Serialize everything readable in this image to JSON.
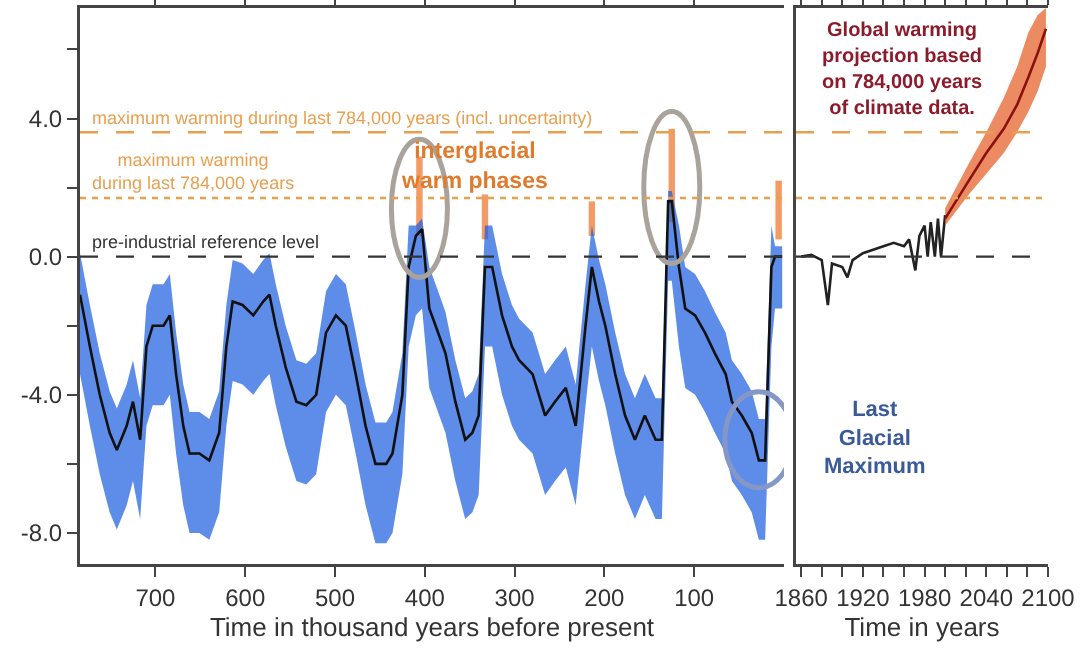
{
  "chart_data": [
    {
      "type": "line",
      "xlabel": "Time in thousand years before present",
      "xlim": [
        784,
        0
      ],
      "xticks": [
        100,
        200,
        300,
        400,
        500,
        600,
        700
      ],
      "ylim": [
        -8.9,
        7.2
      ],
      "yticks": [
        {
          "value": -8,
          "label": "-8.0"
        },
        {
          "value": -6,
          "label": null
        },
        {
          "value": -4,
          "label": "-4.0"
        },
        {
          "value": -2,
          "label": null
        },
        {
          "value": 0,
          "label": "0.0"
        },
        {
          "value": 2,
          "label": null
        },
        {
          "value": 4,
          "label": "4.0"
        },
        {
          "value": 6,
          "label": null
        }
      ],
      "series": [
        {
          "color": "#111111",
          "x": [
            784,
            773,
            762,
            751,
            743,
            732,
            725,
            717,
            710,
            703,
            691,
            684,
            677,
            669,
            662,
            651,
            640,
            629,
            621,
            614,
            603,
            591,
            580,
            573,
            566,
            555,
            543,
            532,
            521,
            510,
            499,
            488,
            477,
            466,
            455,
            443,
            436,
            425,
            418,
            410,
            403,
            395,
            388,
            377,
            366,
            355,
            347,
            340,
            333,
            325,
            314,
            303,
            295,
            280,
            266,
            255,
            243,
            232,
            221,
            214,
            206,
            199,
            188,
            177,
            166,
            155,
            143,
            136,
            129,
            125,
            117,
            110,
            99,
            88,
            77,
            65,
            58,
            47,
            36,
            28,
            21,
            14,
            10,
            2
          ],
          "values": [
            -1.1,
            -2.6,
            -4.0,
            -5.1,
            -5.6,
            -4.9,
            -4.2,
            -5.3,
            -2.6,
            -2.0,
            -2.0,
            -1.7,
            -3.4,
            -4.9,
            -5.7,
            -5.7,
            -5.9,
            -5.1,
            -2.6,
            -1.3,
            -1.4,
            -1.7,
            -1.3,
            -1.1,
            -2.0,
            -3.2,
            -4.2,
            -4.3,
            -4.0,
            -2.2,
            -1.7,
            -2.0,
            -3.4,
            -4.9,
            -6.0,
            -6.0,
            -5.7,
            -4.0,
            -0.3,
            0.6,
            0.8,
            -1.5,
            -2.0,
            -2.8,
            -4.2,
            -5.3,
            -5.1,
            -4.6,
            -0.3,
            -0.3,
            -1.7,
            -2.6,
            -3.0,
            -3.4,
            -4.6,
            -4.2,
            -3.8,
            -4.9,
            -2.0,
            -0.3,
            -1.3,
            -2.0,
            -3.4,
            -4.6,
            -5.3,
            -4.6,
            -5.3,
            -5.3,
            1.6,
            1.6,
            -0.3,
            -1.5,
            -1.7,
            -2.2,
            -2.8,
            -3.4,
            -4.2,
            -4.6,
            -5.1,
            -5.9,
            -5.9,
            -0.3,
            0.0,
            0.0
          ],
          "upper": [
            0.1,
            -1.4,
            -2.8,
            -3.9,
            -4.4,
            -3.7,
            -3.0,
            -4.1,
            -1.4,
            -0.8,
            -0.8,
            -0.5,
            -2.2,
            -3.7,
            -4.5,
            -4.5,
            -4.7,
            -3.9,
            -1.4,
            -0.1,
            -0.2,
            -0.5,
            -0.1,
            0.1,
            -0.8,
            -2.0,
            -3.0,
            -3.1,
            -2.8,
            -1.0,
            -0.5,
            -0.8,
            -2.2,
            -3.7,
            -4.8,
            -4.8,
            -4.5,
            -2.8,
            0.9,
            0.9,
            1.1,
            -0.3,
            -0.8,
            -1.6,
            -3.0,
            -4.1,
            -3.9,
            -3.4,
            0.9,
            0.9,
            -0.5,
            -1.4,
            -1.8,
            -2.2,
            -3.4,
            -3.0,
            -2.6,
            -3.7,
            -0.8,
            0.9,
            -0.1,
            -0.8,
            -2.2,
            -3.4,
            -4.1,
            -3.4,
            -4.1,
            -4.1,
            1.9,
            1.9,
            0.9,
            -0.3,
            -0.5,
            -1.0,
            -1.6,
            -2.2,
            -3.0,
            -3.4,
            -3.9,
            -4.7,
            -4.7,
            0.9,
            0.3,
            0.3
          ],
          "lower": [
            -3.4,
            -4.9,
            -6.3,
            -7.4,
            -7.9,
            -7.2,
            -6.5,
            -7.6,
            -4.9,
            -4.3,
            -4.3,
            -4.0,
            -5.7,
            -7.2,
            -8.0,
            -8.0,
            -8.2,
            -7.4,
            -4.9,
            -3.6,
            -3.7,
            -4.0,
            -3.6,
            -3.4,
            -4.3,
            -5.5,
            -6.5,
            -6.6,
            -6.3,
            -4.5,
            -4.0,
            -4.3,
            -5.7,
            -7.2,
            -8.3,
            -8.3,
            -8.0,
            -6.3,
            -2.6,
            -1.7,
            -1.5,
            -3.8,
            -4.3,
            -5.1,
            -6.5,
            -7.6,
            -7.4,
            -6.9,
            -2.6,
            -2.6,
            -4.0,
            -4.9,
            -5.3,
            -5.7,
            -6.9,
            -6.5,
            -6.1,
            -7.2,
            -4.3,
            -2.6,
            -3.6,
            -4.3,
            -5.7,
            -6.9,
            -7.6,
            -6.9,
            -7.6,
            -7.6,
            -0.7,
            -0.7,
            -2.6,
            -3.8,
            -4.0,
            -4.5,
            -5.1,
            -5.7,
            -6.5,
            -6.9,
            -7.4,
            -8.2,
            -8.2,
            -2.6,
            -1.5,
            -1.5
          ]
        },
        {
          "type": "bar",
          "color": "#f08a4b",
          "x": [
            406,
            333,
            214,
            125,
            6
          ],
          "base": [
            0.6,
            0.5,
            0.6,
            1.0,
            0.5
          ],
          "values": [
            2.3,
            1.3,
            1.0,
            2.7,
            1.7
          ]
        }
      ],
      "ref_lines": [
        {
          "axis": "y",
          "value": 3.6,
          "label": "maximum warming during last 784,000 years (incl. uncertainty)",
          "color": "#e8a050",
          "line_style": "dashed"
        },
        {
          "axis": "y",
          "value": 1.7,
          "label": "maximum warming\nduring last 784,000 years",
          "color": "#e8a050",
          "line_style": "dotted"
        },
        {
          "axis": "y",
          "value": 0,
          "label": "pre-industrial reference level",
          "color": "#333333",
          "line_style": "dashed"
        }
      ],
      "annotations": [
        "interglacial\nwarm phases",
        {
          "text": "Last\nGlacial\nMaximum",
          "x": 28,
          "y": -5.3
        }
      ],
      "grid": false,
      "marker": "none"
    },
    {
      "type": "line",
      "xlabel": "Time in years",
      "xlim": [
        1855,
        2100
      ],
      "xticks": [
        1860,
        {
          "value": 1880,
          "label": null
        },
        {
          "value": 1900,
          "label": null
        },
        1920,
        {
          "value": 1940,
          "label": null
        },
        {
          "value": 1960,
          "label": null
        },
        1980,
        {
          "value": 2000,
          "label": null
        },
        {
          "value": 2020,
          "label": null
        },
        2040,
        {
          "value": 2060,
          "label": null
        },
        {
          "value": 2080,
          "label": null
        },
        2100
      ],
      "ylim": [
        -8.9,
        7.2
      ],
      "tick_labels": "x",
      "series": [
        {
          "color": "#222222",
          "x": [
            1860,
            1870,
            1880,
            1886,
            1890,
            1900,
            1905,
            1910,
            1920,
            1930,
            1940,
            1950,
            1960,
            1965,
            1971,
            1975,
            1980,
            1983,
            1986,
            1990,
            1993,
            1996,
            2000
          ],
          "values": [
            0,
            0.05,
            -0.1,
            -1.4,
            -0.2,
            -0.3,
            -0.6,
            -0.1,
            0.1,
            0.2,
            0.3,
            0.4,
            0.3,
            0.5,
            -0.4,
            0.6,
            0.9,
            0.0,
            1.0,
            0.0,
            1.1,
            0.0,
            1.2
          ]
        },
        {
          "color": "#8b1010",
          "x": [
            2000,
            2023,
            2040,
            2057,
            2070,
            2081,
            2090,
            2098
          ],
          "values": [
            1.1,
            2.2,
            3.0,
            3.7,
            4.4,
            5.2,
            5.9,
            6.6
          ],
          "lower": [
            0.9,
            1.8,
            2.4,
            3.0,
            3.6,
            4.2,
            4.8,
            5.5
          ],
          "upper": [
            1.4,
            2.7,
            3.6,
            4.6,
            5.5,
            6.5,
            7.0,
            7.2
          ]
        }
      ],
      "ref_lines": [
        {
          "axis": "y",
          "value": 3.6,
          "color": "#e8a050",
          "line_style": "dashed"
        },
        {
          "axis": "y",
          "value": 1.7,
          "color": "#e8a050",
          "line_style": "dotted"
        },
        {
          "axis": "y",
          "value": 0,
          "color": "#333333",
          "line_style": "dashed"
        }
      ],
      "annotations": [
        "Global warming\nprojection based\non 784,000 years\nof climate data."
      ],
      "grid": false,
      "marker": "none"
    }
  ]
}
